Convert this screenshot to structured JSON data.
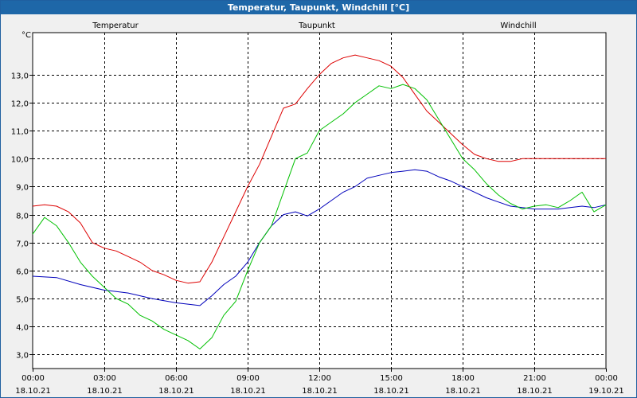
{
  "window": {
    "title": "Temperatur, Taupunkt, Windchill [°C]"
  },
  "chart_data": {
    "type": "line",
    "title": "Temperatur, Taupunkt, Windchill [°C]",
    "ylabel": "°C",
    "ylim": [
      2.5,
      14.5
    ],
    "xlim": [
      0,
      24
    ],
    "yticks": [
      3.0,
      4.0,
      5.0,
      6.0,
      7.0,
      8.0,
      9.0,
      10.0,
      11.0,
      12.0,
      13.0
    ],
    "ytick_labels": [
      "3,0",
      "4,0",
      "5,0",
      "6,0",
      "7,0",
      "8,0",
      "9,0",
      "10,0",
      "11,0",
      "12,0",
      "13,0"
    ],
    "xticks": [
      {
        "x": 0,
        "time": "00:00",
        "date": "18.10.21"
      },
      {
        "x": 3,
        "time": "03:00",
        "date": "18.10.21"
      },
      {
        "x": 6,
        "time": "06:00",
        "date": "18.10.21"
      },
      {
        "x": 9,
        "time": "09:00",
        "date": "18.10.21"
      },
      {
        "x": 12,
        "time": "12:00",
        "date": "18.10.21"
      },
      {
        "x": 15,
        "time": "15:00",
        "date": "18.10.21"
      },
      {
        "x": 18,
        "time": "18:00",
        "date": "18.10.21"
      },
      {
        "x": 21,
        "time": "21:00",
        "date": "18.10.21"
      },
      {
        "x": 24,
        "time": "00:00",
        "date": "19.10.21"
      }
    ],
    "grid": true,
    "legend_position": "top",
    "series": [
      {
        "name": "Temperatur",
        "color": "#dd0000",
        "x": [
          0,
          0.5,
          1,
          1.5,
          2,
          2.5,
          3,
          3.5,
          4,
          4.5,
          5,
          5.5,
          6,
          6.5,
          7,
          7.5,
          8,
          8.5,
          9,
          9.5,
          10,
          10.5,
          11,
          11.5,
          12,
          12.5,
          13,
          13.5,
          14,
          14.5,
          15,
          15.5,
          16,
          16.5,
          17,
          17.5,
          18,
          18.5,
          19,
          19.5,
          20,
          20.5,
          21,
          21.5,
          22,
          22.5,
          23,
          23.5,
          24
        ],
        "y": [
          8.3,
          8.35,
          8.3,
          8.1,
          7.7,
          7.0,
          6.8,
          6.7,
          6.5,
          6.3,
          6.0,
          5.85,
          5.65,
          5.55,
          5.6,
          6.3,
          7.2,
          8.1,
          9.0,
          9.8,
          10.8,
          11.8,
          11.95,
          12.5,
          13.0,
          13.4,
          13.6,
          13.7,
          13.6,
          13.5,
          13.3,
          12.9,
          12.3,
          11.7,
          11.3,
          10.9,
          10.5,
          10.15,
          10.0,
          9.9,
          9.9,
          10.0,
          10.0,
          10.0,
          10.0,
          10.0,
          10.0,
          10.0,
          10.0
        ]
      },
      {
        "name": "Taupunkt",
        "color": "#0000bb",
        "x": [
          0,
          1,
          2,
          3,
          3.5,
          4,
          5,
          6,
          6.5,
          7,
          7.5,
          8,
          8.5,
          9,
          9.5,
          10,
          10.5,
          11,
          11.5,
          12,
          12.5,
          13,
          13.5,
          14,
          14.5,
          15,
          15.5,
          16,
          16.5,
          17,
          17.5,
          18,
          18.5,
          19,
          19.5,
          20,
          20.5,
          21,
          21.5,
          22,
          22.5,
          23,
          23.5,
          24
        ],
        "y": [
          5.8,
          5.75,
          5.5,
          5.3,
          5.25,
          5.2,
          5.0,
          4.85,
          4.8,
          4.75,
          5.1,
          5.5,
          5.8,
          6.3,
          7.0,
          7.6,
          8.0,
          8.1,
          7.95,
          8.2,
          8.5,
          8.8,
          9.0,
          9.3,
          9.4,
          9.5,
          9.55,
          9.6,
          9.55,
          9.35,
          9.2,
          9.0,
          8.8,
          8.6,
          8.45,
          8.3,
          8.25,
          8.2,
          8.2,
          8.2,
          8.25,
          8.3,
          8.25,
          8.35
        ]
      },
      {
        "name": "Windchill",
        "color": "#00c000",
        "x": [
          0,
          0.5,
          1,
          1.5,
          2,
          2.5,
          3,
          3.5,
          4,
          4.5,
          5,
          5.5,
          6,
          6.5,
          7,
          7.5,
          8,
          8.5,
          9,
          9.5,
          10,
          10.5,
          11,
          11.5,
          12,
          12.5,
          13,
          13.5,
          14,
          14.5,
          15,
          15.5,
          16,
          16.5,
          17,
          17.5,
          18,
          18.5,
          19,
          19.5,
          20,
          20.5,
          21,
          21.5,
          22,
          22.5,
          23,
          23.5,
          24
        ],
        "y": [
          7.3,
          7.9,
          7.6,
          7.0,
          6.3,
          5.8,
          5.4,
          5.0,
          4.8,
          4.4,
          4.2,
          3.9,
          3.7,
          3.5,
          3.2,
          3.6,
          4.4,
          4.9,
          6.0,
          7.0,
          7.6,
          8.8,
          10.0,
          10.2,
          11.0,
          11.3,
          11.6,
          12.0,
          12.3,
          12.6,
          12.5,
          12.65,
          12.5,
          12.1,
          11.4,
          10.7,
          10.0,
          9.6,
          9.1,
          8.7,
          8.4,
          8.2,
          8.3,
          8.35,
          8.25,
          8.5,
          8.8,
          8.1,
          8.35
        ]
      }
    ]
  }
}
